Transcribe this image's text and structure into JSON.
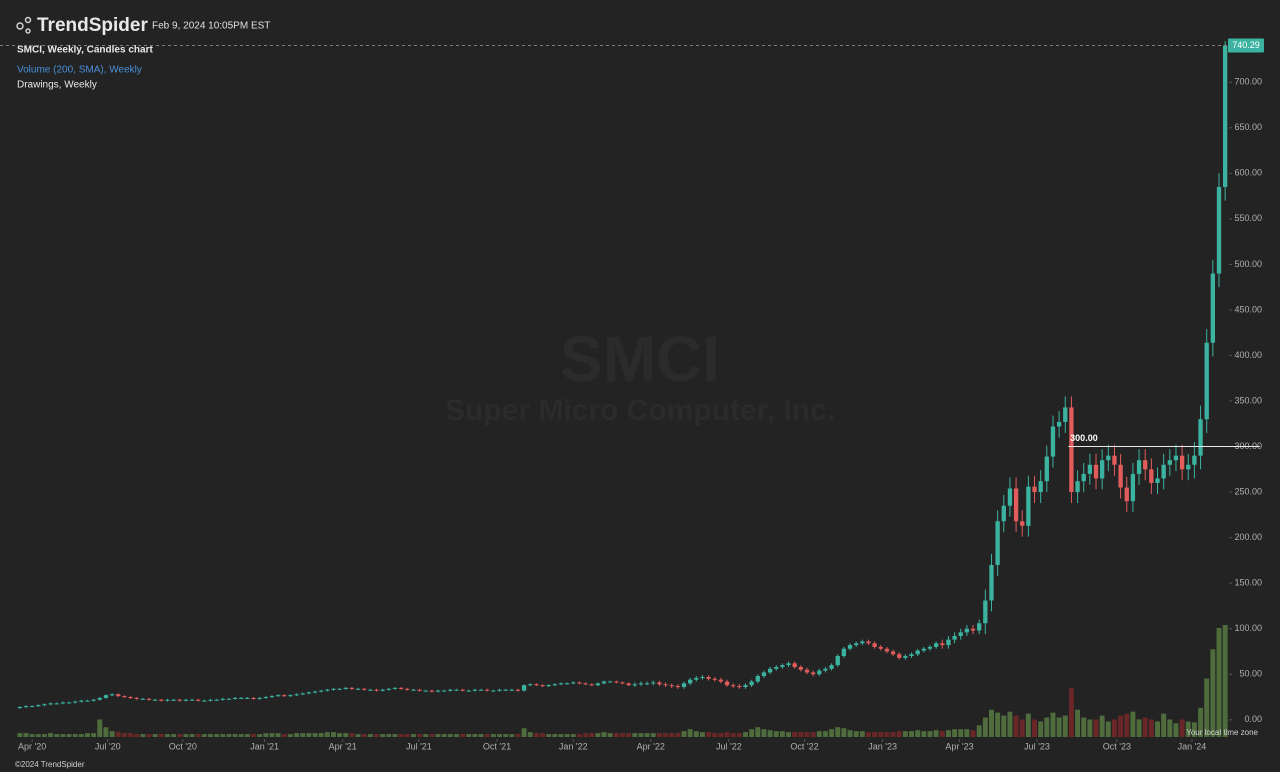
{
  "header": {
    "brand": "TrendSpider",
    "timestamp": "Feb 9, 2024 10:05PM EST"
  },
  "chart_data": {
    "type": "candlestick",
    "title": "SMCI, Weekly, Candles chart",
    "legend_items": [
      "Volume (200, SMA), Weekly",
      "Drawings, Weekly"
    ],
    "watermark": {
      "symbol": "SMCI",
      "name": "Super Micro Computer, Inc."
    },
    "up_color": "#3bb3a0",
    "down_color": "#e25c5c",
    "volume_up_color": "#4f6d3c",
    "volume_down_color": "#6b2727",
    "xlim": [
      -0.3,
      196.3
    ],
    "xticks": [
      {
        "value": 2,
        "label": "Apr '20"
      },
      {
        "value": 14.3,
        "label": "Jul '20"
      },
      {
        "value": 26.5,
        "label": "Oct '20"
      },
      {
        "value": 39.8,
        "label": "Jan '21"
      },
      {
        "value": 52.5,
        "label": "Apr '21"
      },
      {
        "value": 64.9,
        "label": "Jul '21"
      },
      {
        "value": 77.6,
        "label": "Oct '21"
      },
      {
        "value": 90,
        "label": "Jan '22"
      },
      {
        "value": 102.6,
        "label": "Apr '22"
      },
      {
        "value": 115.3,
        "label": "Jul '22"
      },
      {
        "value": 127.6,
        "label": "Oct '22"
      },
      {
        "value": 140.3,
        "label": "Jan '23"
      },
      {
        "value": 152.8,
        "label": "Apr '23"
      },
      {
        "value": 165.4,
        "label": "Jul '23"
      },
      {
        "value": 178.4,
        "label": "Oct '23"
      },
      {
        "value": 190.6,
        "label": "Jan '24"
      }
    ],
    "ylim": [
      -20,
      742
    ],
    "yticks": [
      {
        "value": 0,
        "label": "0.00"
      },
      {
        "value": 50,
        "label": "50.00"
      },
      {
        "value": 100,
        "label": "100.00"
      },
      {
        "value": 150,
        "label": "150.00"
      },
      {
        "value": 200,
        "label": "200.00"
      },
      {
        "value": 250,
        "label": "250.00"
      },
      {
        "value": 300,
        "label": "300.00"
      },
      {
        "value": 350,
        "label": "350.00"
      },
      {
        "value": 400,
        "label": "400.00"
      },
      {
        "value": 450,
        "label": "450.00"
      },
      {
        "value": 500,
        "label": "500.00"
      },
      {
        "value": 550,
        "label": "550.00"
      },
      {
        "value": 600,
        "label": "600.00"
      },
      {
        "value": 650,
        "label": "650.00"
      },
      {
        "value": 700,
        "label": "700.00"
      }
    ],
    "last_price": 740.29,
    "drawing": {
      "value": 300,
      "label": "300.00"
    },
    "candles": [
      [
        13,
        15,
        12,
        14
      ],
      [
        14,
        16,
        13,
        15
      ],
      [
        15,
        16,
        14,
        15
      ],
      [
        15,
        17,
        14,
        16
      ],
      [
        16,
        18,
        15,
        17
      ],
      [
        17,
        19,
        16,
        18
      ],
      [
        18,
        19,
        17,
        18
      ],
      [
        18,
        20,
        17,
        19
      ],
      [
        19,
        20,
        18,
        19
      ],
      [
        19,
        21,
        18,
        20
      ],
      [
        20,
        22,
        19,
        21
      ],
      [
        21,
        22,
        20,
        21
      ],
      [
        21,
        23,
        20,
        22
      ],
      [
        22,
        25,
        21,
        24
      ],
      [
        24,
        28,
        23,
        27
      ],
      [
        27,
        29,
        26,
        28
      ],
      [
        28,
        29,
        25,
        26
      ],
      [
        26,
        27,
        24,
        25
      ],
      [
        25,
        26,
        23,
        24
      ],
      [
        24,
        25,
        22,
        23
      ],
      [
        23,
        24,
        22,
        23
      ],
      [
        23,
        24,
        21,
        22
      ],
      [
        22,
        23,
        21,
        22
      ],
      [
        22,
        23,
        20,
        21
      ],
      [
        21,
        23,
        20,
        22
      ],
      [
        22,
        23,
        21,
        22
      ],
      [
        22,
        23,
        20,
        21
      ],
      [
        21,
        23,
        20,
        22
      ],
      [
        22,
        23,
        21,
        22
      ],
      [
        22,
        23,
        20,
        21
      ],
      [
        21,
        22,
        20,
        21
      ],
      [
        21,
        23,
        20,
        22
      ],
      [
        22,
        23,
        21,
        22
      ],
      [
        22,
        24,
        21,
        23
      ],
      [
        23,
        24,
        22,
        23
      ],
      [
        23,
        25,
        22,
        24
      ],
      [
        24,
        25,
        23,
        24
      ],
      [
        24,
        25,
        23,
        24
      ],
      [
        24,
        25,
        22,
        23
      ],
      [
        23,
        25,
        22,
        24
      ],
      [
        24,
        26,
        23,
        25
      ],
      [
        25,
        27,
        24,
        26
      ],
      [
        26,
        28,
        25,
        27
      ],
      [
        27,
        28,
        25,
        26
      ],
      [
        26,
        28,
        25,
        27
      ],
      [
        27,
        29,
        26,
        28
      ],
      [
        28,
        30,
        27,
        29
      ],
      [
        29,
        31,
        28,
        30
      ],
      [
        30,
        32,
        29,
        31
      ],
      [
        31,
        33,
        30,
        32
      ],
      [
        32,
        34,
        31,
        33
      ],
      [
        33,
        35,
        32,
        34
      ],
      [
        34,
        35,
        33,
        34
      ],
      [
        34,
        36,
        33,
        35
      ],
      [
        35,
        36,
        33,
        34
      ],
      [
        34,
        35,
        33,
        34
      ],
      [
        34,
        35,
        32,
        33
      ],
      [
        33,
        34,
        32,
        33
      ],
      [
        33,
        34,
        31,
        32
      ],
      [
        32,
        34,
        31,
        33
      ],
      [
        33,
        35,
        32,
        34
      ],
      [
        34,
        36,
        33,
        35
      ],
      [
        35,
        36,
        33,
        34
      ],
      [
        34,
        35,
        32,
        33
      ],
      [
        33,
        34,
        32,
        33
      ],
      [
        33,
        34,
        31,
        32
      ],
      [
        32,
        33,
        31,
        32
      ],
      [
        32,
        33,
        30,
        31
      ],
      [
        31,
        33,
        30,
        32
      ],
      [
        32,
        33,
        31,
        32
      ],
      [
        32,
        34,
        31,
        33
      ],
      [
        33,
        34,
        32,
        33
      ],
      [
        33,
        34,
        31,
        32
      ],
      [
        32,
        33,
        31,
        32
      ],
      [
        32,
        34,
        31,
        33
      ],
      [
        33,
        34,
        32,
        33
      ],
      [
        33,
        34,
        31,
        32
      ],
      [
        32,
        33,
        31,
        32
      ],
      [
        32,
        34,
        31,
        33
      ],
      [
        33,
        34,
        32,
        33
      ],
      [
        33,
        34,
        32,
        33
      ],
      [
        33,
        34,
        31,
        32
      ],
      [
        32,
        39,
        31,
        38
      ],
      [
        38,
        40,
        37,
        39
      ],
      [
        39,
        40,
        37,
        38
      ],
      [
        38,
        39,
        36,
        37
      ],
      [
        37,
        39,
        36,
        38
      ],
      [
        38,
        40,
        37,
        39
      ],
      [
        39,
        41,
        38,
        40
      ],
      [
        40,
        41,
        39,
        40
      ],
      [
        40,
        42,
        39,
        41
      ],
      [
        41,
        42,
        39,
        40
      ],
      [
        40,
        41,
        38,
        39
      ],
      [
        39,
        40,
        37,
        38
      ],
      [
        38,
        41,
        37,
        40
      ],
      [
        40,
        43,
        39,
        42
      ],
      [
        42,
        43,
        41,
        42
      ],
      [
        42,
        43,
        40,
        41
      ],
      [
        41,
        42,
        39,
        40
      ],
      [
        40,
        41,
        37,
        38
      ],
      [
        38,
        41,
        36,
        39
      ],
      [
        39,
        42,
        37,
        40
      ],
      [
        40,
        42,
        38,
        40
      ],
      [
        40,
        43,
        38,
        41
      ],
      [
        41,
        43,
        37,
        39
      ],
      [
        39,
        41,
        36,
        38
      ],
      [
        38,
        40,
        35,
        37
      ],
      [
        37,
        39,
        34,
        36
      ],
      [
        36,
        42,
        34,
        40
      ],
      [
        40,
        46,
        38,
        44
      ],
      [
        44,
        48,
        42,
        46
      ],
      [
        46,
        49,
        44,
        47
      ],
      [
        47,
        49,
        43,
        45
      ],
      [
        45,
        47,
        42,
        44
      ],
      [
        44,
        46,
        40,
        42
      ],
      [
        42,
        44,
        36,
        38
      ],
      [
        38,
        40,
        35,
        37
      ],
      [
        37,
        39,
        34,
        36
      ],
      [
        36,
        40,
        34,
        38
      ],
      [
        38,
        44,
        36,
        42
      ],
      [
        42,
        50,
        40,
        48
      ],
      [
        48,
        54,
        46,
        52
      ],
      [
        52,
        58,
        50,
        56
      ],
      [
        56,
        60,
        54,
        58
      ],
      [
        58,
        62,
        56,
        60
      ],
      [
        60,
        64,
        58,
        62
      ],
      [
        62,
        64,
        56,
        58
      ],
      [
        58,
        60,
        53,
        55
      ],
      [
        55,
        57,
        50,
        52
      ],
      [
        52,
        54,
        48,
        50
      ],
      [
        50,
        56,
        48,
        54
      ],
      [
        54,
        58,
        52,
        56
      ],
      [
        56,
        62,
        54,
        60
      ],
      [
        60,
        72,
        58,
        70
      ],
      [
        70,
        80,
        68,
        78
      ],
      [
        78,
        84,
        76,
        82
      ],
      [
        82,
        86,
        80,
        84
      ],
      [
        84,
        88,
        82,
        86
      ],
      [
        86,
        88,
        82,
        84
      ],
      [
        84,
        86,
        78,
        80
      ],
      [
        80,
        82,
        76,
        78
      ],
      [
        78,
        80,
        73,
        75
      ],
      [
        75,
        77,
        70,
        72
      ],
      [
        72,
        74,
        66,
        68
      ],
      [
        68,
        72,
        66,
        70
      ],
      [
        70,
        74,
        68,
        72
      ],
      [
        72,
        78,
        70,
        76
      ],
      [
        76,
        80,
        74,
        78
      ],
      [
        78,
        82,
        76,
        80
      ],
      [
        80,
        86,
        78,
        84
      ],
      [
        84,
        88,
        78,
        82
      ],
      [
        82,
        92,
        78,
        88
      ],
      [
        88,
        96,
        84,
        92
      ],
      [
        92,
        100,
        88,
        96
      ],
      [
        96,
        104,
        92,
        100
      ],
      [
        100,
        104,
        94,
        98
      ],
      [
        98,
        110,
        94,
        106
      ],
      [
        106,
        143,
        94,
        131
      ],
      [
        131,
        182,
        119,
        170
      ],
      [
        170,
        230,
        158,
        218
      ],
      [
        218,
        247,
        206,
        235
      ],
      [
        235,
        266,
        223,
        254
      ],
      [
        254,
        266,
        206,
        218
      ],
      [
        218,
        230,
        201,
        213
      ],
      [
        213,
        268,
        201,
        256
      ],
      [
        256,
        268,
        238,
        250
      ],
      [
        250,
        274,
        238,
        262
      ],
      [
        262,
        301,
        250,
        289
      ],
      [
        289,
        334,
        277,
        322
      ],
      [
        322,
        339,
        310,
        327
      ],
      [
        327,
        355,
        315,
        343
      ],
      [
        343,
        355,
        238,
        250
      ],
      [
        250,
        274,
        238,
        262
      ],
      [
        262,
        282,
        250,
        270
      ],
      [
        270,
        292,
        258,
        280
      ],
      [
        280,
        292,
        253,
        265
      ],
      [
        265,
        297,
        253,
        285
      ],
      [
        285,
        302,
        273,
        290
      ],
      [
        290,
        302,
        268,
        280
      ],
      [
        280,
        292,
        243,
        255
      ],
      [
        255,
        267,
        228,
        240
      ],
      [
        240,
        282,
        228,
        270
      ],
      [
        270,
        297,
        258,
        285
      ],
      [
        285,
        297,
        263,
        275
      ],
      [
        275,
        287,
        248,
        260
      ],
      [
        260,
        277,
        248,
        265
      ],
      [
        265,
        292,
        253,
        280
      ],
      [
        280,
        297,
        268,
        285
      ],
      [
        285,
        302,
        273,
        290
      ],
      [
        290,
        302,
        263,
        275
      ],
      [
        275,
        292,
        263,
        280
      ],
      [
        280,
        305,
        265,
        290
      ],
      [
        290,
        345,
        275,
        330
      ],
      [
        330,
        429,
        315,
        414
      ],
      [
        414,
        505,
        399,
        490
      ],
      [
        490,
        600,
        475,
        585
      ],
      [
        585,
        745,
        570,
        740.29
      ]
    ],
    "volume": [
      4,
      4,
      3,
      3,
      3,
      4,
      3,
      3,
      3,
      3,
      3,
      4,
      4,
      18,
      10,
      6,
      5,
      4,
      4,
      3,
      3,
      3,
      3,
      3,
      3,
      3,
      3,
      3,
      3,
      3,
      3,
      3,
      3,
      3,
      3,
      3,
      3,
      3,
      3,
      3,
      4,
      4,
      4,
      3,
      3,
      4,
      4,
      4,
      4,
      4,
      5,
      5,
      4,
      4,
      4,
      3,
      3,
      3,
      3,
      3,
      3,
      3,
      3,
      3,
      3,
      3,
      3,
      3,
      3,
      3,
      3,
      3,
      3,
      3,
      3,
      3,
      3,
      3,
      3,
      3,
      3,
      3,
      9,
      5,
      4,
      4,
      3,
      3,
      3,
      3,
      3,
      3,
      4,
      4,
      4,
      5,
      4,
      4,
      4,
      4,
      4,
      4,
      4,
      4,
      4,
      4,
      4,
      4,
      6,
      8,
      6,
      5,
      5,
      4,
      4,
      5,
      4,
      4,
      5,
      8,
      10,
      8,
      7,
      6,
      6,
      5,
      5,
      5,
      5,
      5,
      6,
      6,
      8,
      10,
      9,
      7,
      6,
      6,
      5,
      5,
      5,
      5,
      5,
      6,
      6,
      6,
      7,
      6,
      6,
      7,
      6,
      7,
      8,
      8,
      8,
      7,
      12,
      20,
      28,
      25,
      22,
      26,
      22,
      18,
      24,
      18,
      16,
      20,
      25,
      20,
      22,
      50,
      28,
      20,
      18,
      18,
      22,
      16,
      18,
      22,
      24,
      26,
      18,
      20,
      18,
      16,
      24,
      18,
      14,
      18,
      16,
      15,
      30,
      60,
      90,
      112,
      115
    ]
  },
  "footer": {
    "copyright": "©2024 TrendSpider",
    "timezone_note": "Your local time zone"
  }
}
